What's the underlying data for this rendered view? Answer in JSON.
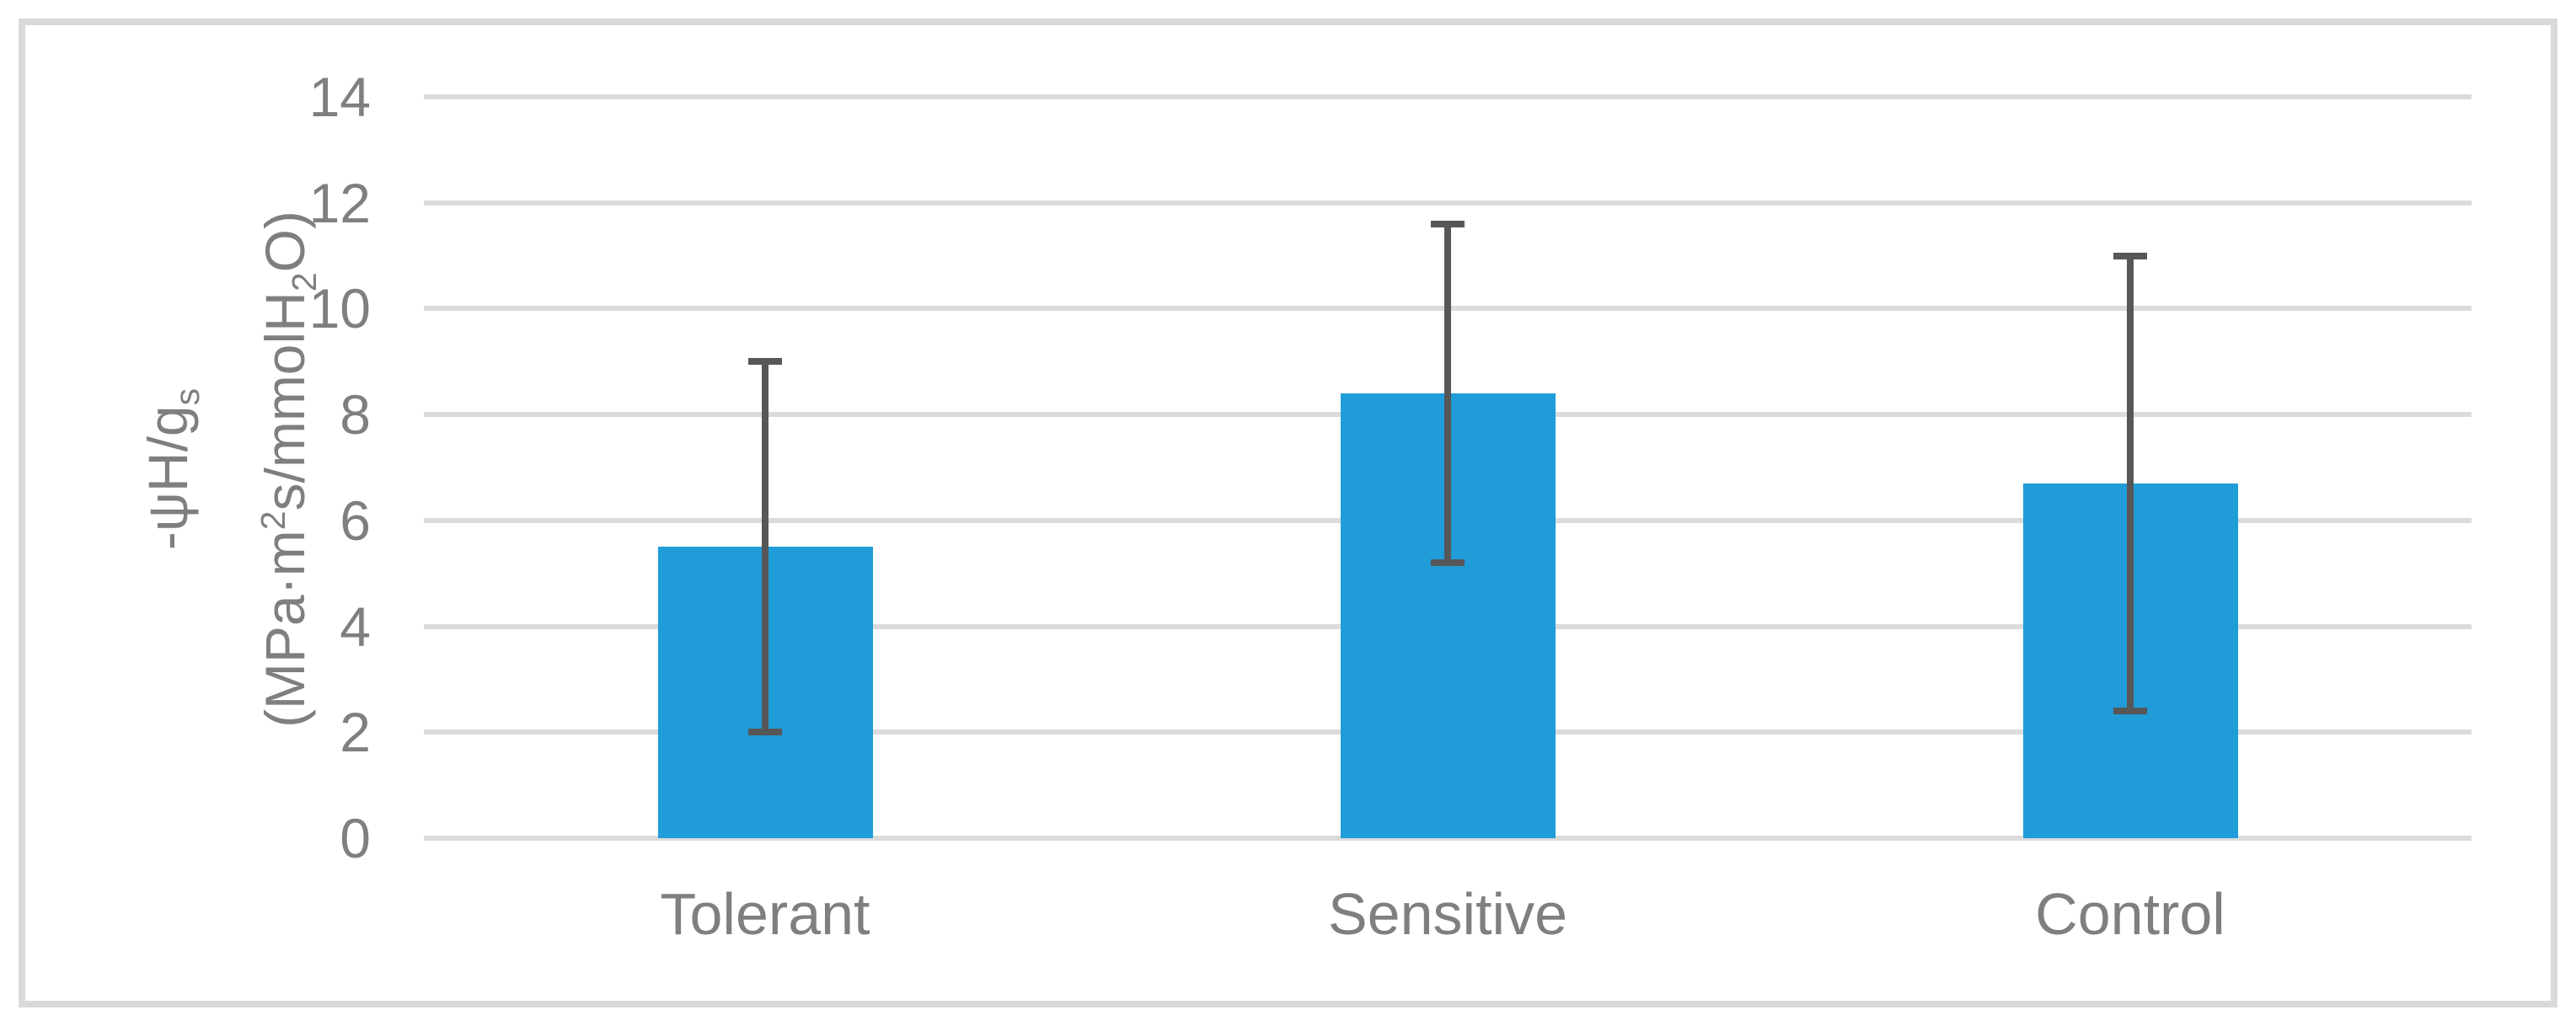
{
  "chart_data": {
    "type": "bar",
    "title": "",
    "xlabel": "",
    "ylabel": "-ψH/gs (MPa·m2s/mmolH2O)",
    "categories": [
      "Tolerant",
      "Sensitive",
      "Control"
    ],
    "values": [
      5.5,
      8.4,
      6.7
    ],
    "error_bars": {
      "lower": [
        2.0,
        5.2,
        2.4
      ],
      "upper": [
        9.0,
        11.6,
        11.0
      ]
    },
    "yticks": [
      0,
      2,
      4,
      6,
      8,
      10,
      12,
      14
    ],
    "ylim": [
      0,
      14
    ],
    "grid": "horizontal",
    "legend": "none",
    "y_axis_title": {
      "line1": [
        {
          "t": "-ψH/g"
        },
        {
          "t": "s",
          "v": "sub"
        }
      ],
      "line2": [
        {
          "t": "(MPa·m"
        },
        {
          "t": "2",
          "v": "sup"
        },
        {
          "t": "s/mmolH"
        },
        {
          "t": "2",
          "v": "sub"
        },
        {
          "t": "O)"
        }
      ]
    },
    "colors": {
      "bar_fill": "#209CD8",
      "error_bar": "#575757",
      "gridline": "#DBDBDB",
      "chart_border": "#D9D9D9",
      "axis_text": "#7F7F7F",
      "background": "#FFFFFF"
    }
  }
}
